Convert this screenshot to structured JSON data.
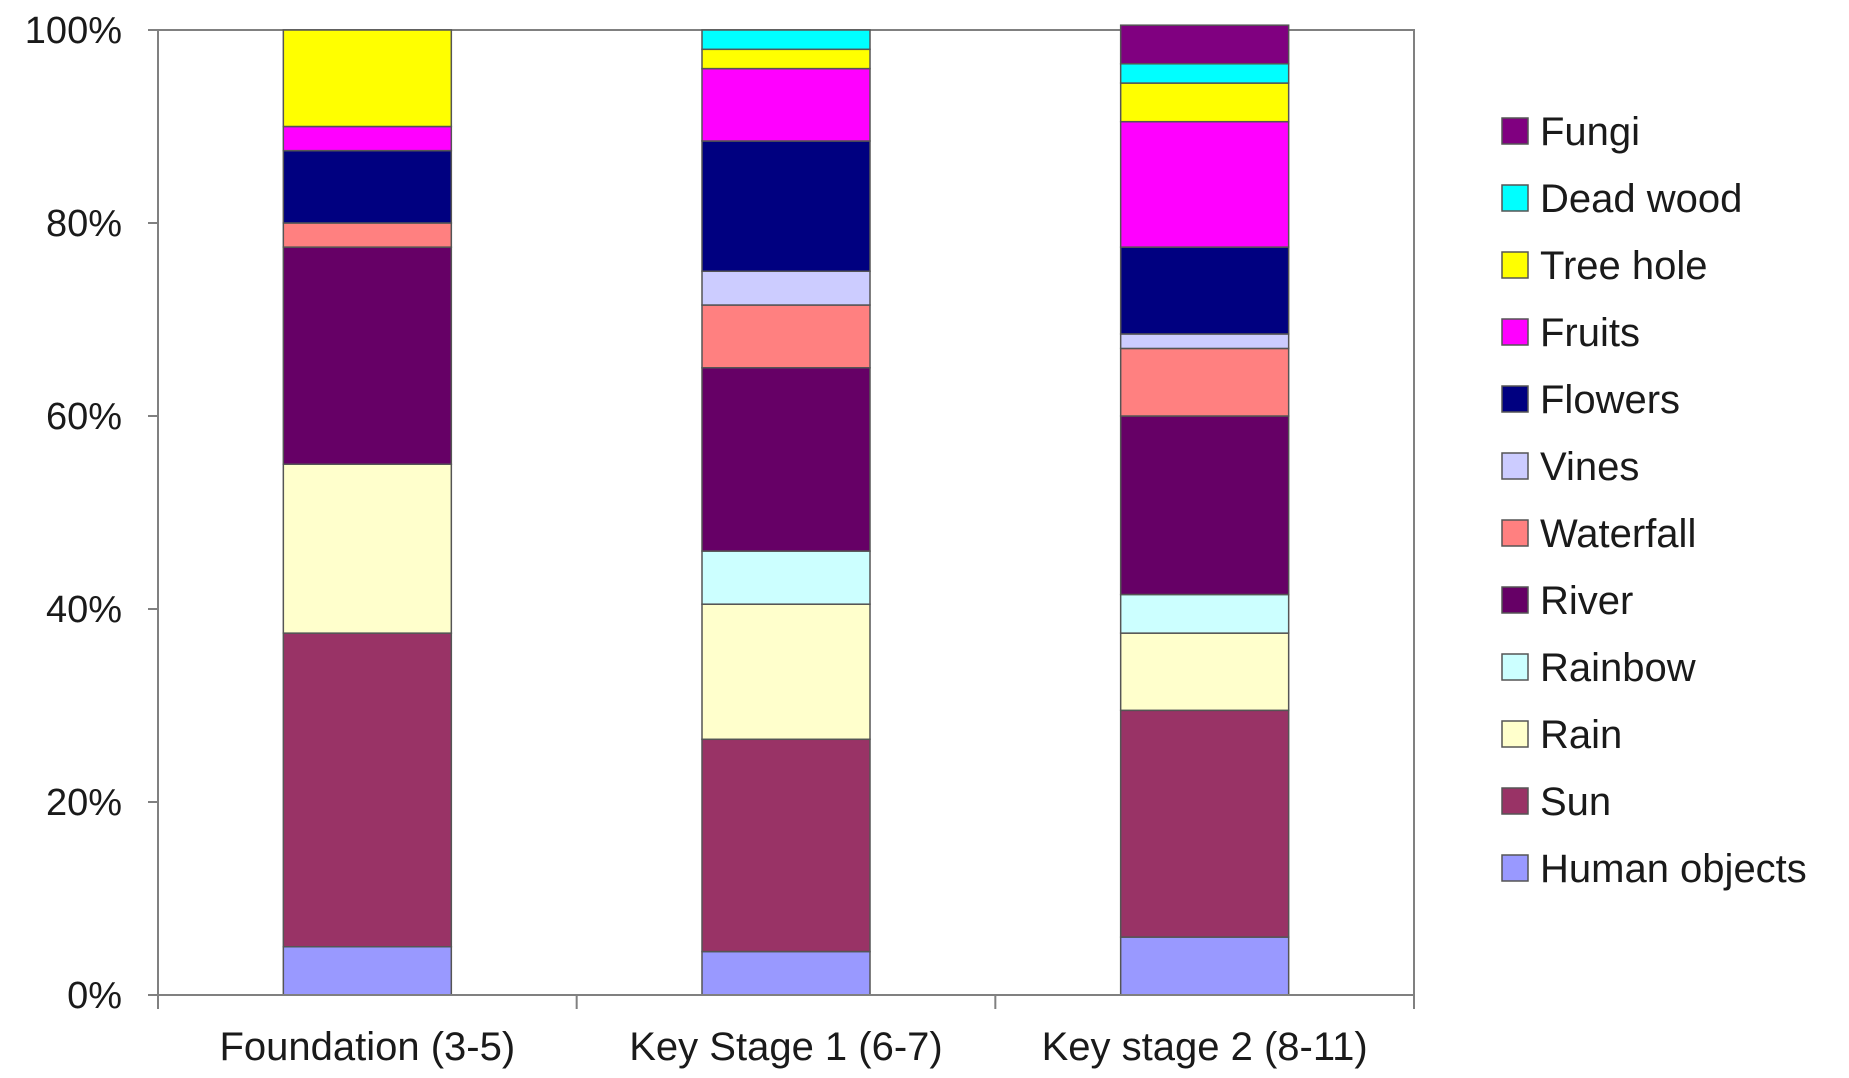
{
  "chart_data": {
    "type": "bar",
    "stacked": true,
    "normalized": true,
    "categories": [
      "Foundation (3-5)",
      "Key Stage 1 (6-7)",
      "Key stage 2 (8-11)"
    ],
    "y_ticks": [
      "0%",
      "20%",
      "40%",
      "60%",
      "80%",
      "100%"
    ],
    "ylim": [
      0,
      100
    ],
    "grid": false,
    "legend_position": "right",
    "series": [
      {
        "name": "Human objects",
        "color": "#9999FF",
        "values": [
          5,
          4.5,
          6
        ]
      },
      {
        "name": "Sun",
        "color": "#993366",
        "values": [
          32.5,
          22,
          23.5
        ]
      },
      {
        "name": "Rain",
        "color": "#FFFFCC",
        "values": [
          17.5,
          14,
          8
        ]
      },
      {
        "name": "Rainbow",
        "color": "#CCFFFF",
        "values": [
          0,
          5.5,
          4
        ]
      },
      {
        "name": "River",
        "color": "#660066",
        "values": [
          22.5,
          19,
          18.5
        ]
      },
      {
        "name": "Waterfall",
        "color": "#FF8080",
        "values": [
          2.5,
          6.5,
          7
        ]
      },
      {
        "name": "Vines",
        "color": "#CCCCFF",
        "values": [
          0,
          3.5,
          1.5
        ]
      },
      {
        "name": "Flowers",
        "color": "#000080",
        "values": [
          7.5,
          13.5,
          9
        ]
      },
      {
        "name": "Fruits",
        "color": "#FF00FF",
        "values": [
          2.5,
          7.5,
          13
        ]
      },
      {
        "name": "Tree hole",
        "color": "#FFFF00",
        "values": [
          10,
          2,
          4
        ]
      },
      {
        "name": "Dead wood",
        "color": "#00FFFF",
        "values": [
          0,
          2,
          2
        ]
      },
      {
        "name": "Fungi",
        "color": "#800080",
        "values": [
          0,
          0,
          4
        ]
      }
    ]
  }
}
